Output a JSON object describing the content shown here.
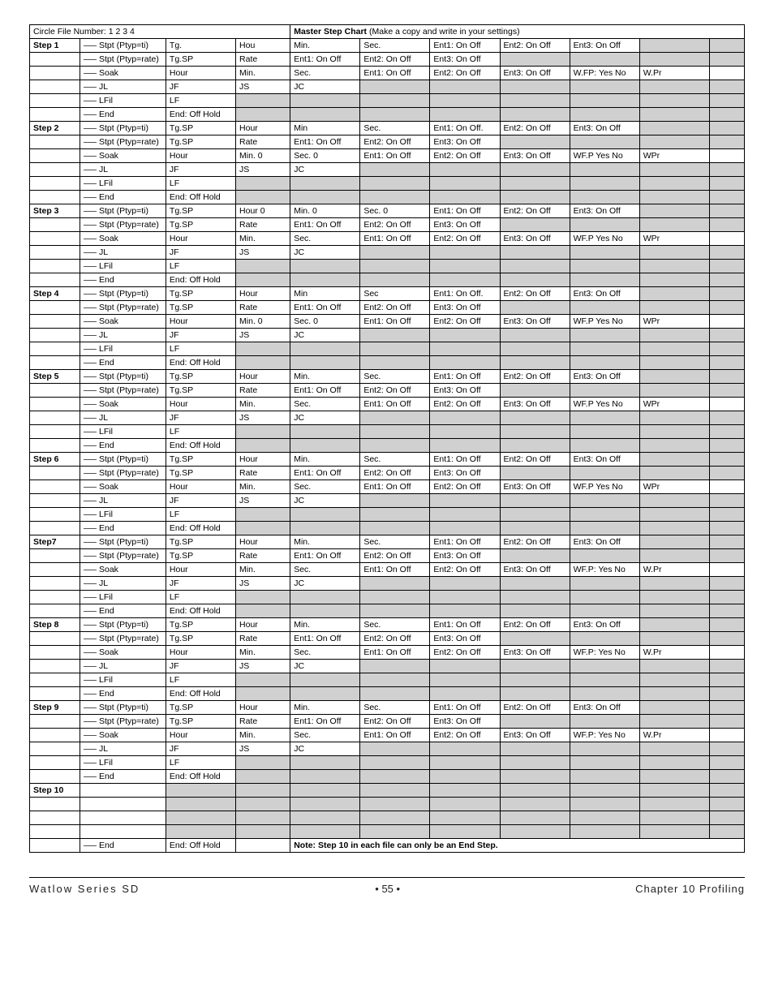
{
  "header": {
    "left": "Circle File Number:   1    2    3    4",
    "right_bold": "Master Step Chart",
    "right_rest": " (Make a copy and write in your settings)"
  },
  "columns": {
    "widths_pct": [
      7.2,
      12.3,
      10.0,
      7.8,
      10.0,
      10.0,
      10.0,
      10.0,
      10.0,
      10.0,
      5.0
    ]
  },
  "row_templates": {
    "stpt_ti": [
      "Stpt (Ptyp=ti)",
      "Tg.",
      "Hou",
      "Min.",
      "Sec.",
      "Ent1: On  Off",
      "Ent2: On  Off",
      "Ent3: On  Off",
      "",
      ""
    ],
    "stpt_ti_sp": [
      "Stpt (Ptyp=ti)",
      "Tg.SP",
      "Hour",
      "Min.",
      "Sec.",
      "Ent1: On  Off",
      "Ent2: On  Off",
      "Ent3: On  Off",
      "",
      ""
    ],
    "stpt_ti_sp_min": [
      "Stpt (Ptyp=ti)",
      "Tg.SP",
      "Hour",
      "Min",
      "Sec.",
      "Ent1: On  Off.",
      "Ent2: On  Off",
      "Ent3: On  Off",
      "",
      ""
    ],
    "stpt_ti_sp_sec": [
      "Stpt (Ptyp=ti)",
      "Tg.SP",
      "Hour",
      "Min",
      "Sec",
      "Ent1: On  Off.",
      "Ent2: On  Off",
      "Ent3: On  Off",
      "",
      ""
    ],
    "stpt_ti_h0": [
      "Stpt (Ptyp=ti)",
      "Tg.SP",
      "Hour   0",
      "Min.   0",
      "Sec.   0",
      "Ent1: On  Off",
      "Ent2: On  Off",
      "Ent3: On  Off",
      "",
      ""
    ],
    "stpt_rate": [
      "Stpt (Ptyp=rate)",
      "Tg.SP",
      "Rate",
      "Ent1: On  Off",
      "Ent2: On  Off",
      "Ent3: On  Off",
      "",
      "",
      "",
      ""
    ],
    "soak_wfp": [
      "Soak",
      "Hour",
      "Min.",
      "Sec.",
      "Ent1: On  Off",
      "Ent2: On  Off",
      "Ent3: On  Off",
      "W.FP: Yes No",
      "W.Pr",
      ""
    ],
    "soak_wfp2": [
      "Soak",
      "Hour",
      "Min.",
      "Sec.",
      "Ent1: On  Off",
      "Ent2: On  Off",
      "Ent3: On  Off",
      "WF.P: Yes No",
      "W.Pr",
      ""
    ],
    "soak_wfpP": [
      "Soak",
      "Hour",
      "Min.",
      "Sec.",
      "Ent1: On  Off",
      "Ent2: On  Off",
      "Ent3: On  Off",
      "WF.P Yes No",
      "WPr",
      ""
    ],
    "soak_m0": [
      "Soak",
      "Hour",
      "Min.  0",
      "Sec.  0",
      "Ent1: On  Off",
      "Ent2: On  Off",
      "Ent3: On  Off",
      "WF.P Yes No",
      "WPr",
      ""
    ],
    "jl": [
      "JL",
      "JF",
      "JS",
      "JC",
      "",
      "",
      "",
      "",
      "",
      ""
    ],
    "lfil": [
      "LFil",
      "LF",
      "",
      "",
      "",
      "",
      "",
      "",
      "",
      ""
    ],
    "end": [
      "End",
      "End:  Off  Hold",
      "",
      "",
      "",
      "",
      "",
      "",
      "",
      ""
    ]
  },
  "steps": [
    {
      "label": "Step 1",
      "rows": [
        "stpt_ti",
        "stpt_rate",
        "soak_wfp",
        "jl",
        "lfil",
        "end"
      ],
      "shaded": {
        "0": [
          9,
          10
        ],
        "1": [
          7,
          8,
          9,
          10
        ],
        "3": [
          5,
          6,
          7,
          8,
          9,
          10
        ],
        "4": [
          3,
          4,
          5,
          6,
          7,
          8,
          9,
          10
        ],
        "5": [
          3,
          4,
          5,
          6,
          7,
          8,
          9,
          10
        ]
      }
    },
    {
      "label": "Step 2",
      "rows": [
        "stpt_ti_sp_min",
        "stpt_rate",
        "soak_m0",
        "jl",
        "lfil",
        "end"
      ],
      "shaded": {
        "0": [
          9,
          10
        ],
        "1": [
          7,
          8,
          9,
          10
        ],
        "3": [
          5,
          6,
          7,
          8,
          9,
          10
        ],
        "4": [
          3,
          4,
          5,
          6,
          7,
          8,
          9,
          10
        ],
        "5": [
          3,
          4,
          5,
          6,
          7,
          8,
          9,
          10
        ]
      }
    },
    {
      "label": "Step 3",
      "rows": [
        "stpt_ti_h0",
        "stpt_rate",
        "soak_wfpP",
        "jl",
        "lfil",
        "end"
      ],
      "shaded": {
        "0": [
          9,
          10
        ],
        "1": [
          7,
          8,
          9,
          10
        ],
        "3": [
          5,
          6,
          7,
          8,
          9,
          10
        ],
        "4": [
          3,
          4,
          5,
          6,
          7,
          8,
          9,
          10
        ],
        "5": [
          3,
          4,
          5,
          6,
          7,
          8,
          9,
          10
        ]
      }
    },
    {
      "label": "Step 4",
      "rows": [
        "stpt_ti_sp_sec",
        "stpt_rate",
        "soak_m0",
        "jl",
        "lfil",
        "end"
      ],
      "shaded": {
        "0": [
          9,
          10
        ],
        "1": [
          7,
          8,
          9,
          10
        ],
        "3": [
          5,
          6,
          7,
          8,
          9,
          10
        ],
        "4": [
          3,
          4,
          5,
          6,
          7,
          8,
          9,
          10
        ],
        "5": [
          3,
          4,
          5,
          6,
          7,
          8,
          9,
          10
        ]
      }
    },
    {
      "label": "Step 5",
      "rows": [
        "stpt_ti_sp",
        "stpt_rate",
        "soak_wfpP",
        "jl",
        "lfil",
        "end"
      ],
      "shaded": {
        "0": [
          9,
          10
        ],
        "1": [
          7,
          8,
          9,
          10
        ],
        "3": [
          5,
          6,
          7,
          8,
          9,
          10
        ],
        "4": [
          3,
          4,
          5,
          6,
          7,
          8,
          9,
          10
        ],
        "5": [
          3,
          4,
          5,
          6,
          7,
          8,
          9,
          10
        ]
      }
    },
    {
      "label": "Step 6",
      "rows": [
        "stpt_ti_sp",
        "stpt_rate",
        "soak_wfpP",
        "jl",
        "lfil",
        "end"
      ],
      "shaded": {
        "0": [
          9,
          10
        ],
        "1": [
          7,
          8,
          9,
          10
        ],
        "3": [
          5,
          6,
          7,
          8,
          9,
          10
        ],
        "4": [
          3,
          4,
          5,
          6,
          7,
          8,
          9,
          10
        ],
        "5": [
          3,
          4,
          5,
          6,
          7,
          8,
          9,
          10
        ]
      }
    },
    {
      "label": "Step7",
      "rows": [
        "stpt_ti_sp",
        "stpt_rate",
        "soak_wfp2",
        "jl",
        "lfil",
        "end"
      ],
      "shaded": {
        "0": [
          9,
          10
        ],
        "1": [
          7,
          8,
          9,
          10
        ],
        "3": [
          5,
          6,
          7,
          8,
          9,
          10
        ],
        "4": [
          3,
          4,
          5,
          6,
          7,
          8,
          9,
          10
        ],
        "5": [
          3,
          4,
          5,
          6,
          7,
          8,
          9,
          10
        ]
      }
    },
    {
      "label": "Step 8",
      "rows": [
        "stpt_ti_sp",
        "stpt_rate",
        "soak_wfp2",
        "jl",
        "lfil",
        "end"
      ],
      "shaded": {
        "0": [
          9,
          10
        ],
        "1": [
          7,
          8,
          9,
          10
        ],
        "3": [
          5,
          6,
          7,
          8,
          9,
          10
        ],
        "4": [
          3,
          4,
          5,
          6,
          7,
          8,
          9,
          10
        ],
        "5": [
          3,
          4,
          5,
          6,
          7,
          8,
          9,
          10
        ]
      }
    },
    {
      "label": "Step 9",
      "rows": [
        "stpt_ti_sp",
        "stpt_rate",
        "soak_wfp2",
        "jl",
        "lfil",
        "end"
      ],
      "shaded": {
        "0": [
          9,
          10
        ],
        "1": [
          7,
          8,
          9,
          10
        ],
        "3": [
          5,
          6,
          7,
          8,
          9,
          10
        ],
        "4": [
          3,
          4,
          5,
          6,
          7,
          8,
          9,
          10
        ],
        "5": [
          3,
          4,
          5,
          6,
          7,
          8,
          9,
          10
        ]
      }
    }
  ],
  "step10": {
    "label": "Step 10",
    "blank_rows": 4,
    "end_row": [
      "End",
      "End:  Off  Hold",
      ""
    ],
    "note": "Note: Step 10 in each file can only be an End Step.",
    "shaded_all": [
      2,
      3,
      4,
      5,
      6,
      7,
      8,
      9,
      10
    ]
  },
  "footer": {
    "left": "Watlow Series SD",
    "center": "•   55   •",
    "right": "Chapter 10 Profiling"
  }
}
